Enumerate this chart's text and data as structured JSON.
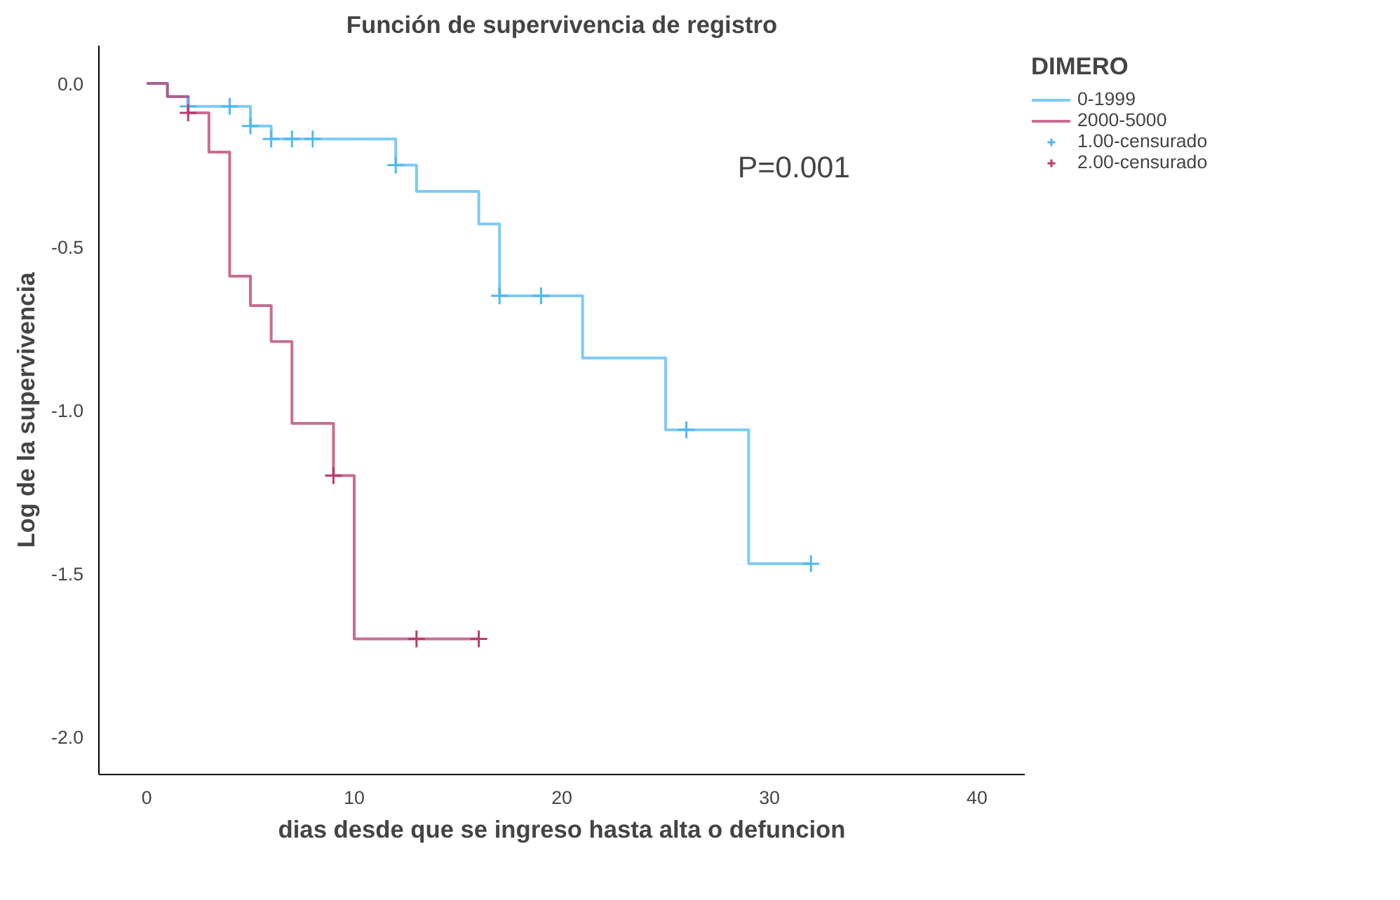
{
  "chart_data": {
    "type": "step",
    "title": "Función de supervivencia de registro",
    "xlabel": "dias desde que se ingreso hasta alta o defuncion",
    "ylabel": "Log de la supervivencia",
    "legend_title": "DIMERO",
    "legend": "right",
    "grid": false,
    "line_style": "solid",
    "xlim": [
      -2.3,
      42.3
    ],
    "xticks": [
      0,
      10,
      20,
      30,
      40
    ],
    "ylim": [
      -2.115,
      0.116
    ],
    "yticks": [
      {
        "value": 0,
        "label": "0.0"
      },
      {
        "value": -0.5,
        "label": "-0.5"
      },
      {
        "value": -1,
        "label": "-1.0"
      },
      {
        "value": -1.5,
        "label": "-1.5"
      },
      {
        "value": -2,
        "label": "-2.0"
      }
    ],
    "annotations": [
      "P=0.001"
    ],
    "series": [
      {
        "name": "0-1999",
        "color": "#52b8f2",
        "x": [
          0,
          1,
          2,
          5,
          6,
          12,
          13,
          16,
          17,
          21,
          25,
          29,
          32
        ],
        "values": [
          0,
          -0.04,
          -0.07,
          -0.13,
          -0.17,
          -0.25,
          -0.33,
          -0.43,
          -0.65,
          -0.84,
          -1.06,
          -1.47,
          -1.47
        ]
      },
      {
        "name": "2000-5000",
        "color": "#b83b6c",
        "x": [
          0,
          1,
          2,
          3,
          4,
          5,
          6,
          7,
          9,
          10,
          16
        ],
        "values": [
          0,
          -0.04,
          -0.09,
          -0.21,
          -0.59,
          -0.68,
          -0.79,
          -1.04,
          -1.2,
          -1.7,
          -1.7
        ]
      },
      {
        "name": "1.00-censurado",
        "type": "scatter",
        "marker": "cross",
        "color": "#52b8f2",
        "x": [
          2,
          4,
          5,
          6,
          7,
          8,
          12,
          17,
          19,
          26,
          32
        ],
        "values": [
          -0.07,
          -0.07,
          -0.13,
          -0.17,
          -0.17,
          -0.17,
          -0.25,
          -0.65,
          -0.65,
          -1.06,
          -1.47
        ]
      },
      {
        "name": "2.00-censurado",
        "type": "scatter",
        "marker": "cross",
        "color": "#b83b6c",
        "x": [
          2,
          9,
          13,
          16
        ],
        "values": [
          -0.09,
          -1.2,
          -1.7,
          -1.7
        ]
      }
    ]
  }
}
